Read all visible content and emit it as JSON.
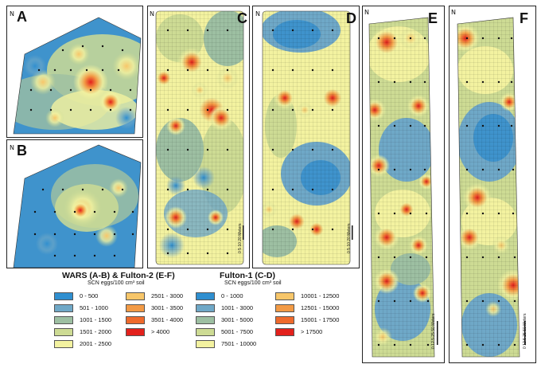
{
  "panels": {
    "A": {
      "label": "A",
      "north": "N"
    },
    "B": {
      "label": "B",
      "north": "N"
    },
    "C": {
      "label": "C",
      "north": "N",
      "scale": "0 5 10    20 Meters"
    },
    "D": {
      "label": "D",
      "north": "N",
      "scale": "0 5 10    20 Meters"
    },
    "E": {
      "label": "E",
      "north": "N",
      "scale": "0 12.5 25       50 Meters"
    },
    "F": {
      "label": "F",
      "north": "N",
      "scale": "0 12.5 25       50 Meters"
    }
  },
  "legend_wars": {
    "title": "WARS (A-B) & Fulton-2 (E-F)",
    "subtitle": "SCN eggs/100 cm³ soil",
    "items": [
      {
        "label": "0 - 500",
        "color": "#2f8fd0"
      },
      {
        "label": "501 - 1000",
        "color": "#6fa8c7"
      },
      {
        "label": "1001 - 1500",
        "color": "#9dbfa2"
      },
      {
        "label": "1501 - 2000",
        "color": "#cddb94"
      },
      {
        "label": "2001 - 2500",
        "color": "#f3f2a0"
      },
      {
        "label": "2501 - 3000",
        "color": "#f7c66a"
      },
      {
        "label": "3001 - 3500",
        "color": "#f29a45"
      },
      {
        "label": "3501 - 4000",
        "color": "#ee6a2c"
      },
      {
        "label": "> 4000",
        "color": "#e3211c"
      }
    ]
  },
  "legend_fulton1": {
    "title": "Fulton-1 (C-D)",
    "subtitle": "SCN eggs/100 cm³ soil",
    "items": [
      {
        "label": "0 - 1000",
        "color": "#2f8fd0"
      },
      {
        "label": "1001 - 3000",
        "color": "#6fa8c7"
      },
      {
        "label": "3001 - 5000",
        "color": "#9dbfa2"
      },
      {
        "label": "5001 - 7500",
        "color": "#cddb94"
      },
      {
        "label": "7501 - 10000",
        "color": "#f3f2a0"
      },
      {
        "label": "10001 - 12500",
        "color": "#f7c66a"
      },
      {
        "label": "12501 - 15000",
        "color": "#f29a45"
      },
      {
        "label": "15001 - 17500",
        "color": "#ee6a2c"
      },
      {
        "label": "> 17500",
        "color": "#e3211c"
      }
    ]
  }
}
